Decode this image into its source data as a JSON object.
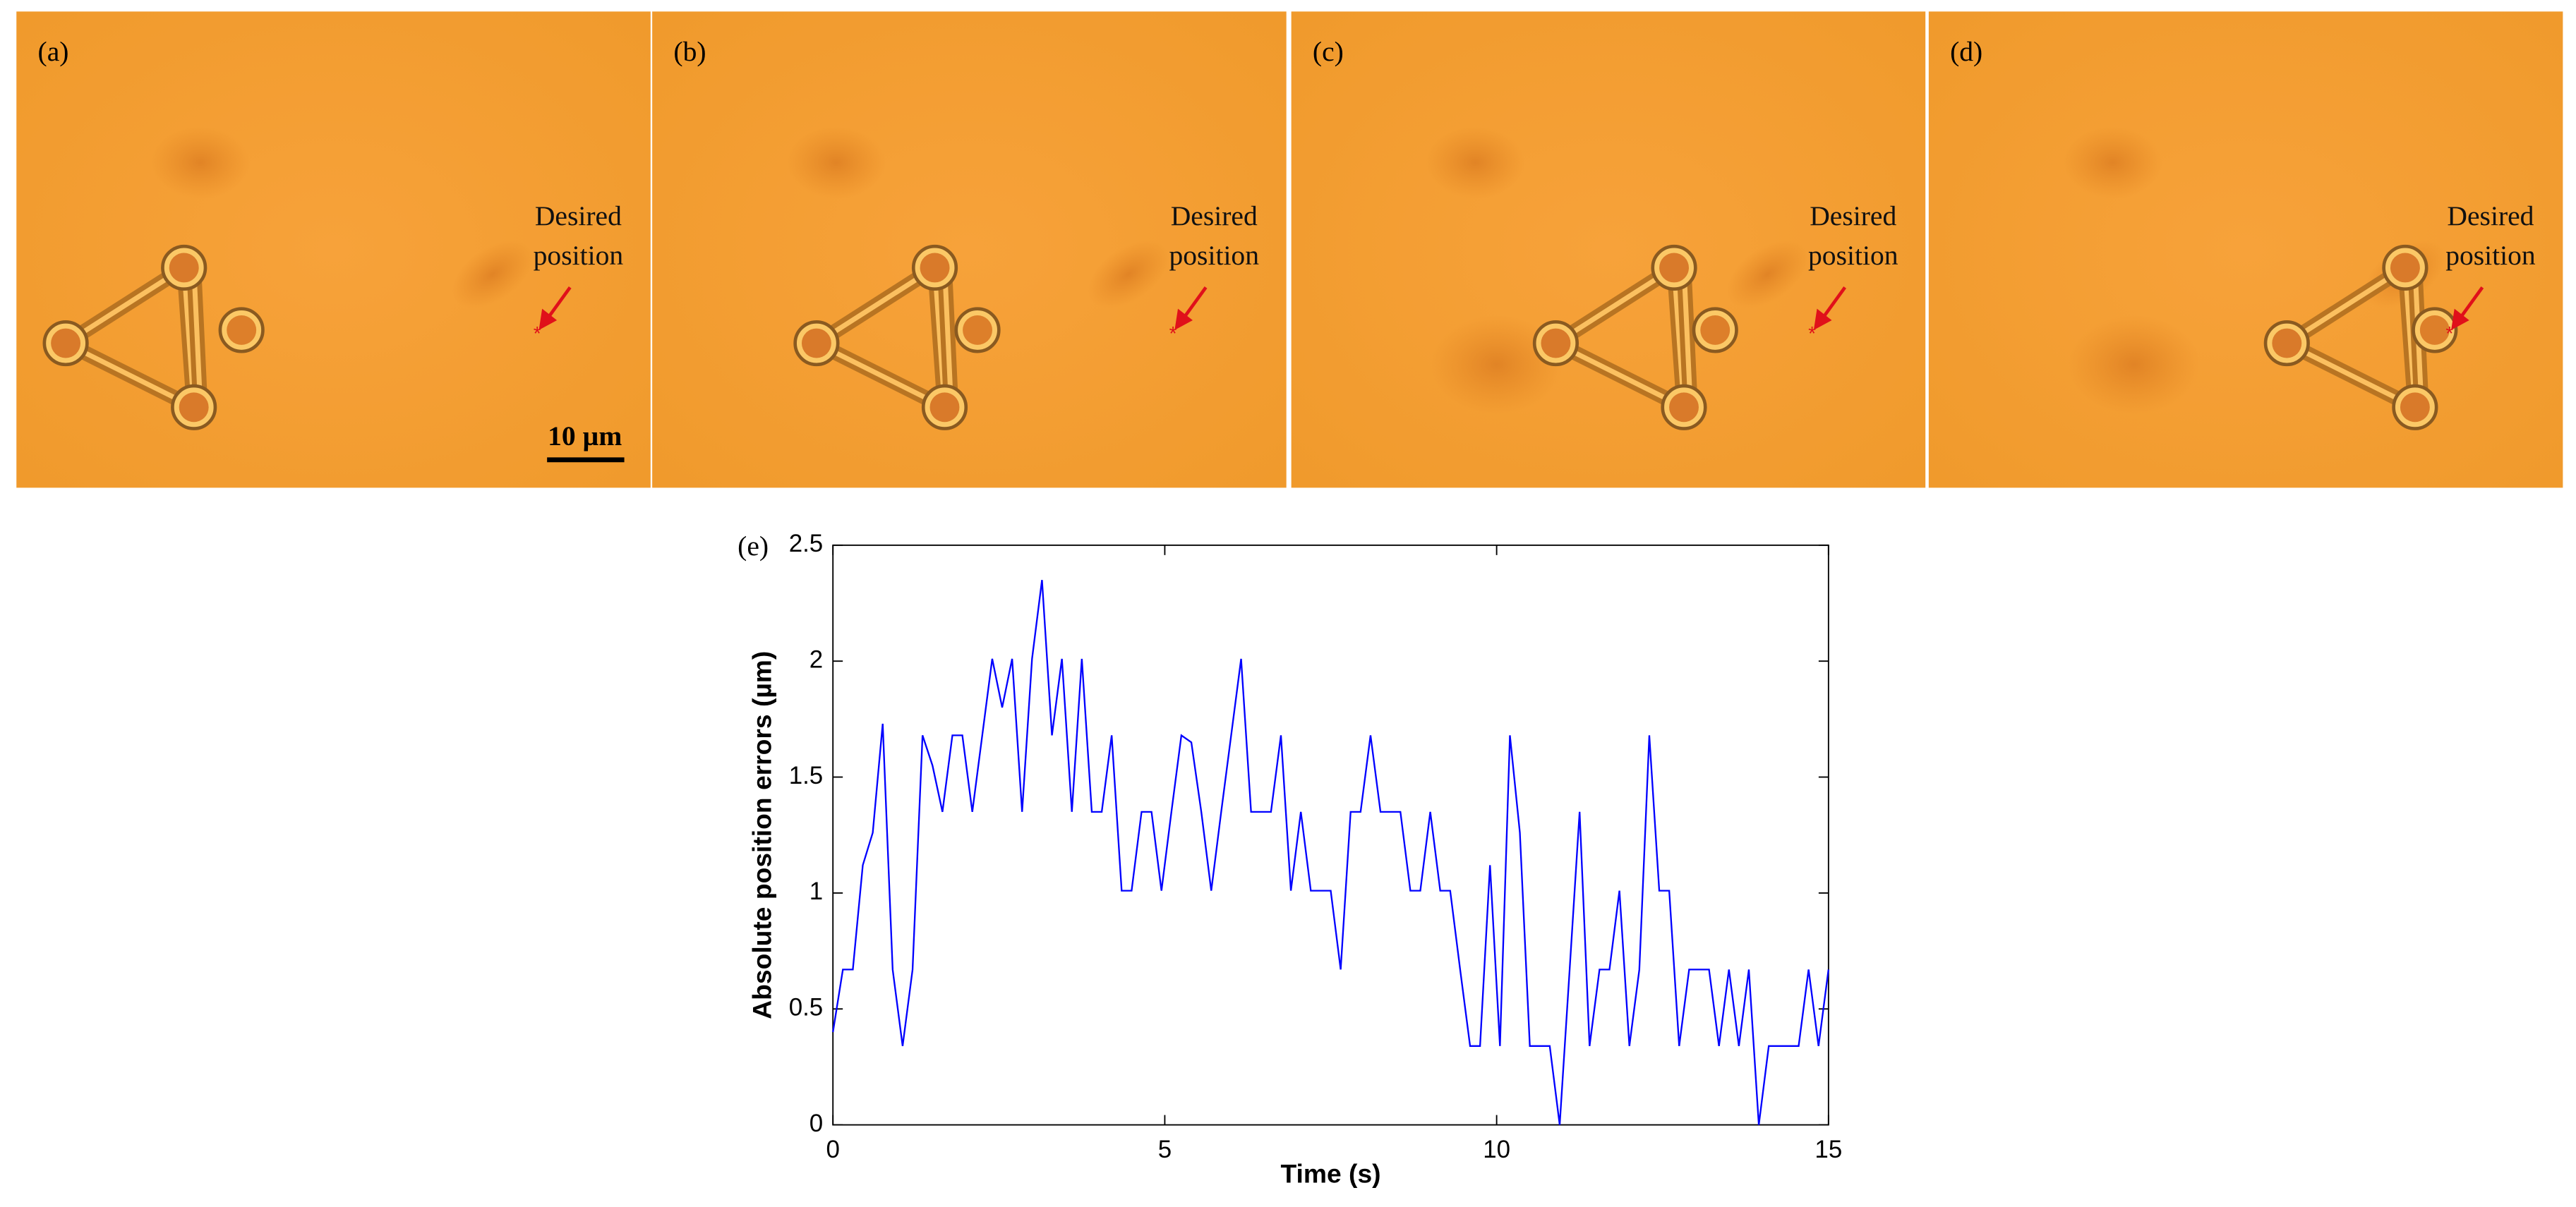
{
  "panels": [
    {
      "label": "(a)",
      "annotation": [
        "Desired",
        "position"
      ],
      "scale_bar": "10 µm"
    },
    {
      "label": "(b)",
      "annotation": [
        "Desired",
        "position"
      ]
    },
    {
      "label": "(c)",
      "annotation": [
        "Desired",
        "position"
      ]
    },
    {
      "label": "(d)",
      "annotation": [
        "Desired",
        "position"
      ]
    }
  ],
  "chart_data": {
    "type": "line",
    "label": "(e)",
    "xlabel": "Time (s)",
    "ylabel": "Absolute position errors (µm)",
    "x": [
      0,
      0.15,
      0.3,
      0.45,
      0.6,
      0.75,
      0.9,
      1.05,
      1.2,
      1.35,
      1.5,
      1.65,
      1.8,
      1.95,
      2.1,
      2.25,
      2.4,
      2.55,
      2.7,
      2.85,
      3,
      3.15,
      3.3,
      3.45,
      3.6,
      3.75,
      3.9,
      4.05,
      4.2,
      4.35,
      4.5,
      4.65,
      4.8,
      4.95,
      5.1,
      5.25,
      5.4,
      5.55,
      5.7,
      5.85,
      6,
      6.15,
      6.3,
      6.45,
      6.6,
      6.75,
      6.9,
      7.05,
      7.2,
      7.35,
      7.5,
      7.65,
      7.8,
      7.95,
      8.1,
      8.25,
      8.4,
      8.55,
      8.7,
      8.85,
      9,
      9.15,
      9.3,
      9.45,
      9.6,
      9.75,
      9.9,
      10.05,
      10.2,
      10.35,
      10.5,
      10.65,
      10.8,
      10.95,
      11.1,
      11.25,
      11.4,
      11.55,
      11.7,
      11.85,
      12,
      12.15,
      12.3,
      12.45,
      12.6,
      12.75,
      12.9,
      13.05,
      13.2,
      13.35,
      13.5,
      13.65,
      13.8,
      13.95,
      14.1,
      14.25,
      14.4,
      14.55,
      14.7,
      14.85,
      15
    ],
    "series": [
      {
        "color": "#0000ff",
        "values": [
          0.4,
          0.67,
          0.67,
          1.12,
          1.26,
          1.73,
          0.67,
          0.34,
          0.67,
          1.68,
          1.55,
          1.35,
          1.68,
          1.68,
          1.35,
          1.68,
          2.01,
          1.8,
          2.01,
          1.35,
          2.01,
          2.35,
          1.68,
          2.01,
          1.35,
          2.01,
          1.35,
          1.35,
          1.68,
          1.01,
          1.01,
          1.35,
          1.35,
          1.01,
          1.35,
          1.68,
          1.65,
          1.35,
          1.01,
          1.35,
          1.68,
          2.01,
          1.35,
          1.35,
          1.35,
          1.68,
          1.01,
          1.35,
          1.01,
          1.01,
          1.01,
          0.67,
          1.35,
          1.35,
          1.68,
          1.35,
          1.35,
          1.35,
          1.01,
          1.01,
          1.35,
          1.01,
          1.01,
          0.67,
          0.34,
          0.34,
          1.12,
          0.34,
          1.68,
          1.26,
          0.34,
          0.34,
          0.34,
          0,
          0.67,
          1.35,
          0.34,
          0.67,
          0.67,
          1.01,
          0.34,
          0.67,
          1.68,
          1.01,
          1.01,
          0.34,
          0.67,
          0.67,
          0.67,
          0.34,
          0.67,
          0.34,
          0.67,
          0,
          0.34,
          0.34,
          0.34,
          0.34,
          0.67,
          0.34,
          0.67
        ]
      }
    ],
    "xlim": [
      0,
      15
    ],
    "ylim": [
      0,
      2.5
    ],
    "xticks": [
      0,
      5,
      10,
      15
    ],
    "yticks": [
      0,
      0.5,
      1,
      1.5,
      2,
      2.5
    ]
  }
}
